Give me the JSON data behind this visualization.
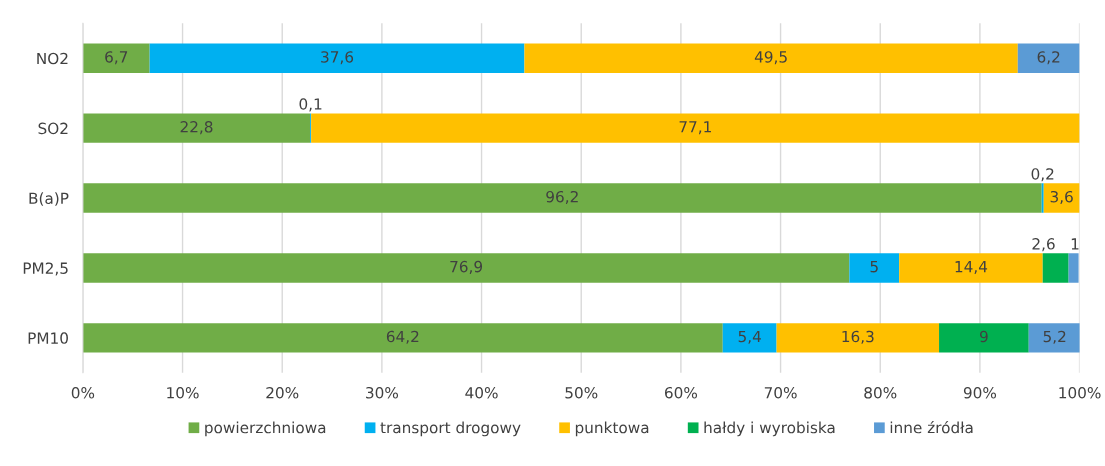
{
  "chart_data": {
    "type": "bar",
    "orientation": "horizontal",
    "stacked": true,
    "categories": [
      "NO2",
      "SO2",
      "B(a)P",
      "PM2,5",
      "PM10"
    ],
    "series": [
      {
        "name": "powierzchniowa",
        "color": "#70ad47",
        "values": [
          6.7,
          22.8,
          96.2,
          76.9,
          64.2
        ],
        "value_labels": [
          "6,7",
          "22,8",
          "96,2",
          "76,9",
          "64,2"
        ]
      },
      {
        "name": "transport drogowy",
        "color": "#00b0f0",
        "values": [
          37.6,
          0.1,
          0.2,
          5,
          5.4
        ],
        "value_labels": [
          "37,6",
          "0,1",
          "0,2",
          "5",
          "5,4"
        ]
      },
      {
        "name": "punktowa",
        "color": "#ffc000",
        "values": [
          49.5,
          77.1,
          3.6,
          14.4,
          16.3
        ],
        "value_labels": [
          "49,5",
          "77,1",
          "3,6",
          "14,4",
          "16,3"
        ]
      },
      {
        "name": "hałdy i wyrobiska",
        "color": "#00b050",
        "values": [
          null,
          null,
          null,
          2.6,
          9
        ],
        "value_labels": [
          null,
          null,
          null,
          "2,6",
          "9"
        ]
      },
      {
        "name": "inne źródła",
        "color": "#5b9bd5",
        "values": [
          6.2,
          null,
          null,
          1,
          5.2
        ],
        "value_labels": [
          "6,2",
          null,
          null,
          "1",
          "5,2"
        ]
      }
    ],
    "xlim": [
      0,
      100
    ],
    "xticks": [
      {
        "value": 0,
        "label": "0%"
      },
      {
        "value": 10,
        "label": "10%"
      },
      {
        "value": 20,
        "label": "20%"
      },
      {
        "value": 30,
        "label": "30%"
      },
      {
        "value": 40,
        "label": "40%"
      },
      {
        "value": 50,
        "label": "50%"
      },
      {
        "value": 60,
        "label": "60%"
      },
      {
        "value": 70,
        "label": "70%"
      },
      {
        "value": 80,
        "label": "80%"
      },
      {
        "value": 90,
        "label": "90%"
      },
      {
        "value": 100,
        "label": "100%"
      }
    ],
    "grid": "x",
    "legend": "bottom"
  }
}
